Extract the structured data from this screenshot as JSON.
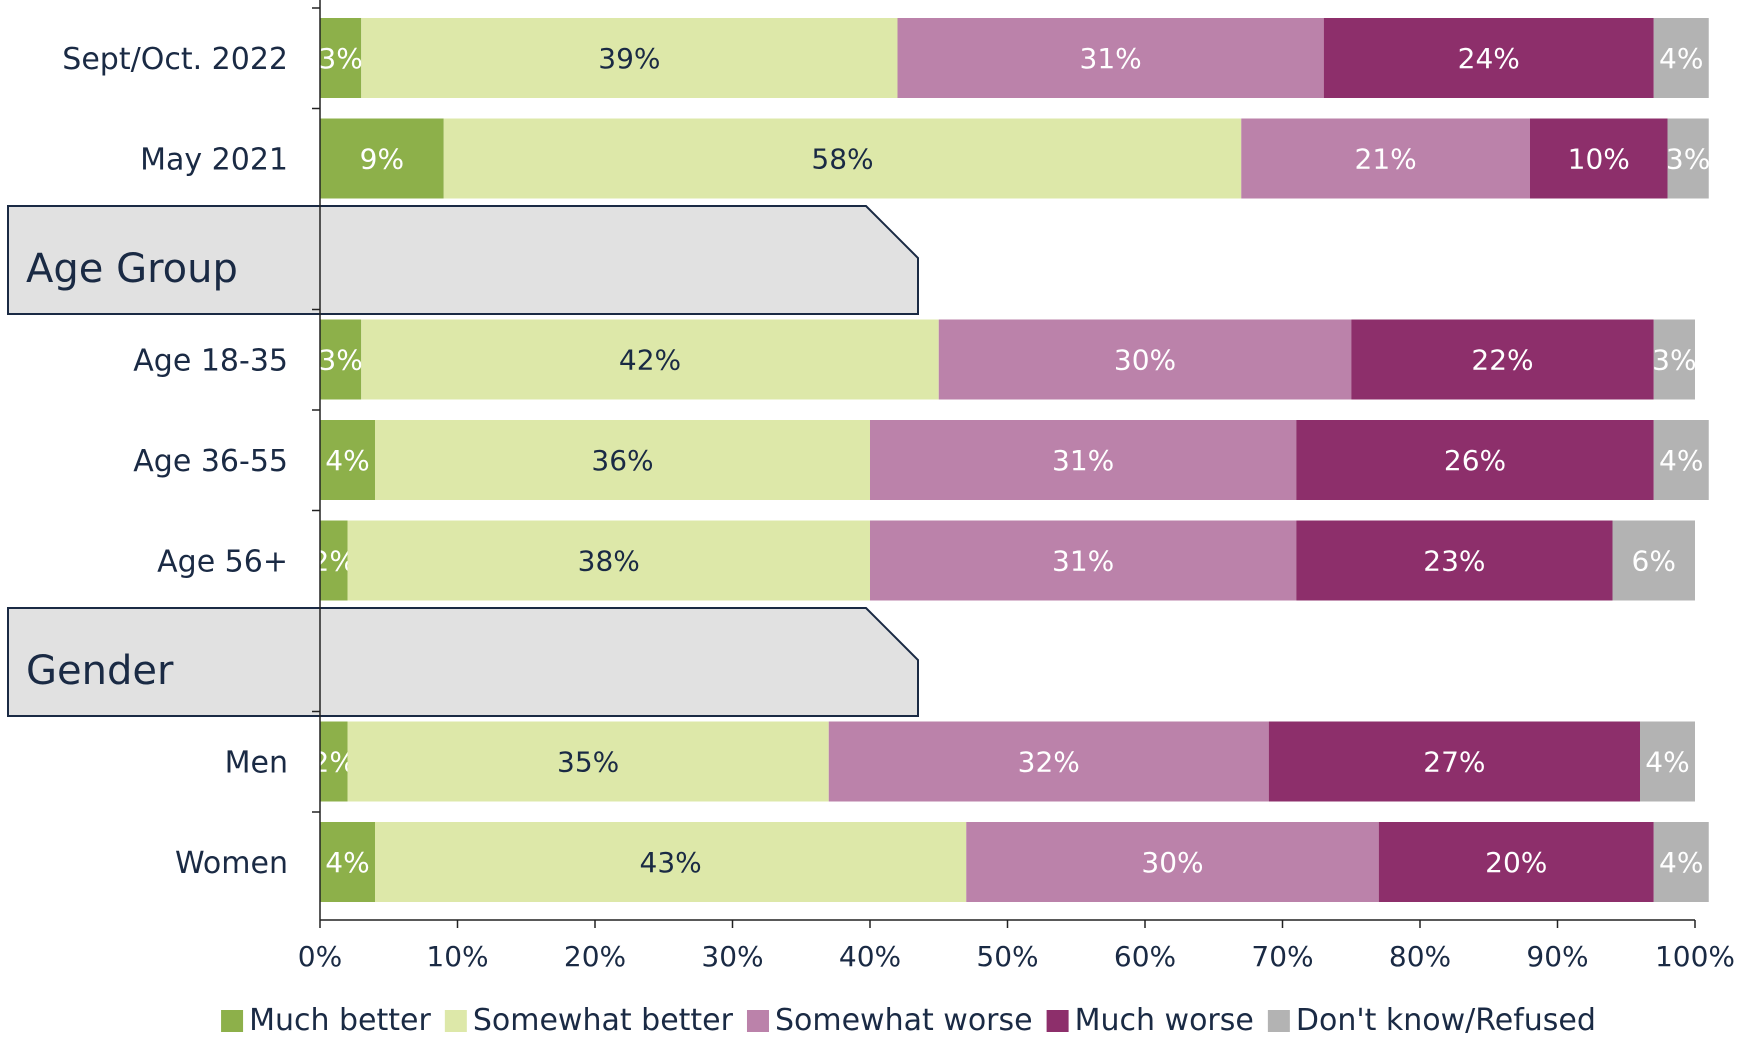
{
  "chart_data": {
    "type": "bar",
    "orientation": "horizontal",
    "stacked": true,
    "xlim": [
      0,
      100
    ],
    "x_ticks": [
      "0%",
      "10%",
      "20%",
      "30%",
      "40%",
      "50%",
      "60%",
      "70%",
      "80%",
      "90%",
      "100%"
    ],
    "series": [
      {
        "name": "Much better",
        "color": "#8db04a",
        "label_color": "#ffffff"
      },
      {
        "name": "Somewhat better",
        "color": "#dde8a9",
        "label_color": "#1a2a44"
      },
      {
        "name": "Somewhat worse",
        "color": "#bb82aa",
        "label_color": "#ffffff"
      },
      {
        "name": "Much worse",
        "color": "#8d2f6b",
        "label_color": "#ffffff"
      },
      {
        "name": "Don't know/Refused",
        "color": "#b3b3b3",
        "label_color": "#ffffff"
      }
    ],
    "rows": [
      {
        "type": "bar",
        "label": "Sept/Oct. 2022",
        "values": [
          3,
          39,
          31,
          24,
          4
        ],
        "value_labels": [
          "3%",
          "39%",
          "31%",
          "24%",
          "4%"
        ]
      },
      {
        "type": "bar",
        "label": "May 2021",
        "values": [
          9,
          58,
          21,
          10,
          3
        ],
        "value_labels": [
          "9%",
          "58%",
          "21%",
          "10%",
          "3%"
        ]
      },
      {
        "type": "group",
        "label": "Age Group"
      },
      {
        "type": "bar",
        "label": "Age 18-35",
        "values": [
          3,
          42,
          30,
          22,
          3
        ],
        "value_labels": [
          "3%",
          "42%",
          "30%",
          "22%",
          "3%"
        ]
      },
      {
        "type": "bar",
        "label": "Age 36-55",
        "values": [
          4,
          36,
          31,
          26,
          4
        ],
        "value_labels": [
          "4%",
          "36%",
          "31%",
          "26%",
          "4%"
        ]
      },
      {
        "type": "bar",
        "label": "Age 56+",
        "values": [
          2,
          38,
          31,
          23,
          6
        ],
        "value_labels": [
          "2%",
          "38%",
          "31%",
          "23%",
          "6%"
        ]
      },
      {
        "type": "group",
        "label": "Gender"
      },
      {
        "type": "bar",
        "label": "Men",
        "values": [
          2,
          35,
          32,
          27,
          4
        ],
        "value_labels": [
          "2%",
          "35%",
          "32%",
          "27%",
          "4%"
        ]
      },
      {
        "type": "bar",
        "label": "Women",
        "values": [
          4,
          43,
          30,
          20,
          4
        ],
        "value_labels": [
          "4%",
          "43%",
          "30%",
          "20%",
          "4%"
        ]
      }
    ],
    "legend_position": "bottom"
  }
}
